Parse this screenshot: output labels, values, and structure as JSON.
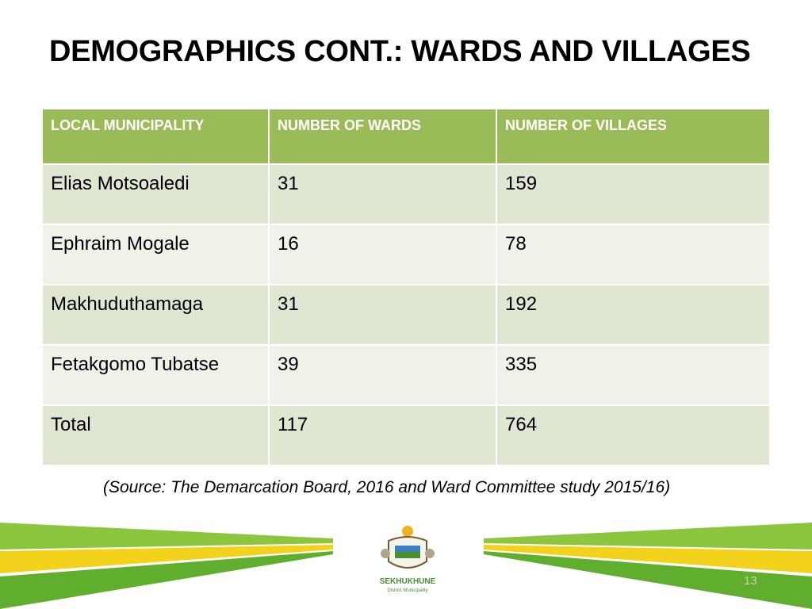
{
  "slide": {
    "title": "DEMOGRAPHICS CONT.: WARDS AND VILLAGES",
    "page_number": "13",
    "source": "(Source: The Demarcation Board, 2016 and Ward Committee study 2015/16)"
  },
  "table": {
    "headers": [
      "LOCAL MUNICIPALITY",
      "NUMBER OF WARDS",
      "NUMBER OF VILLAGES"
    ],
    "rows": [
      [
        "Elias Motsoaledi",
        "31",
        "159"
      ],
      [
        "Ephraim Mogale",
        "16",
        "78"
      ],
      [
        "Makhuduthamaga",
        "31",
        "192"
      ],
      [
        "Fetakgomo Tubatse",
        "39",
        "335"
      ],
      [
        "Total",
        "117",
        "764"
      ]
    ]
  },
  "logo": {
    "name": "SEKHUKHUNE",
    "subtitle": "District Municipality"
  },
  "colors": {
    "header_bg": "#9bbb59",
    "row_dark": "#dfe6d2",
    "row_light": "#eff2e9",
    "stripe_green": "#8cc63f",
    "stripe_yellow": "#f2d21b"
  }
}
